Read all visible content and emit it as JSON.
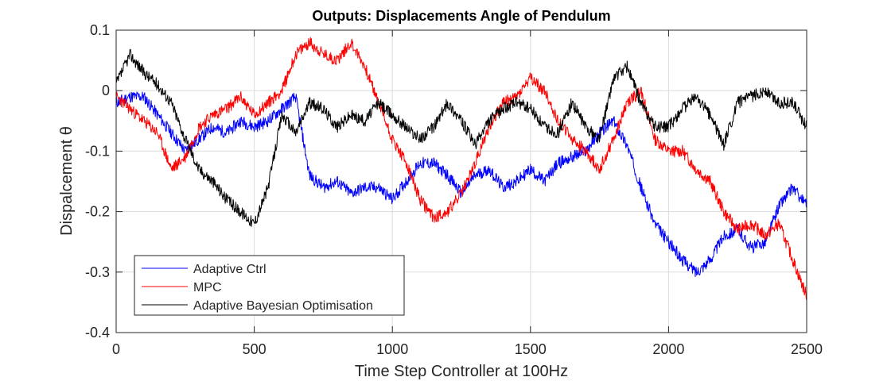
{
  "chart_data": {
    "type": "line",
    "title": "Outputs: Displacements Angle of Pendulum",
    "xlabel": "Time Step Controller at 100Hz",
    "ylabel": "Dispalcement θ",
    "xlim": [
      0,
      2500
    ],
    "ylim": [
      -0.4,
      0.1
    ],
    "x_ticks": [
      0,
      500,
      1000,
      1500,
      2000,
      2500
    ],
    "y_ticks": [
      -0.4,
      -0.3,
      -0.2,
      -0.1,
      0,
      0.1
    ],
    "x_tick_labels": [
      "0",
      "500",
      "1000",
      "1500",
      "2000",
      "2500"
    ],
    "y_tick_labels": [
      "-0.4",
      "-0.3",
      "-0.2",
      "-0.1",
      "0",
      "0.1"
    ],
    "grid": true,
    "legend_position": "bottom-left",
    "x": [
      0,
      50,
      100,
      150,
      200,
      250,
      300,
      350,
      400,
      450,
      500,
      550,
      600,
      650,
      700,
      750,
      800,
      850,
      900,
      950,
      1000,
      1050,
      1100,
      1150,
      1200,
      1250,
      1300,
      1350,
      1400,
      1450,
      1500,
      1550,
      1600,
      1650,
      1700,
      1750,
      1800,
      1850,
      1900,
      1950,
      2000,
      2050,
      2100,
      2150,
      2200,
      2250,
      2300,
      2350,
      2400,
      2450,
      2500
    ],
    "series": [
      {
        "name": "Adaptive Ctrl",
        "color": "#0000ff",
        "values": [
          -0.02,
          -0.01,
          -0.01,
          -0.04,
          -0.07,
          -0.1,
          -0.08,
          -0.06,
          -0.07,
          -0.05,
          -0.06,
          -0.05,
          -0.03,
          -0.01,
          -0.14,
          -0.16,
          -0.15,
          -0.17,
          -0.16,
          -0.16,
          -0.18,
          -0.15,
          -0.12,
          -0.12,
          -0.14,
          -0.17,
          -0.14,
          -0.13,
          -0.16,
          -0.15,
          -0.13,
          -0.15,
          -0.12,
          -0.11,
          -0.1,
          -0.07,
          -0.05,
          -0.09,
          -0.16,
          -0.22,
          -0.25,
          -0.28,
          -0.3,
          -0.28,
          -0.24,
          -0.23,
          -0.26,
          -0.25,
          -0.19,
          -0.16,
          -0.19
        ]
      },
      {
        "name": "MPC",
        "color": "#ff0000",
        "values": [
          -0.01,
          -0.03,
          -0.05,
          -0.07,
          -0.13,
          -0.11,
          -0.06,
          -0.04,
          -0.03,
          -0.01,
          -0.04,
          -0.02,
          0.0,
          0.06,
          0.08,
          0.06,
          0.05,
          0.08,
          0.04,
          -0.02,
          -0.08,
          -0.12,
          -0.18,
          -0.21,
          -0.2,
          -0.17,
          -0.12,
          -0.06,
          -0.02,
          -0.01,
          0.02,
          0.0,
          -0.05,
          -0.08,
          -0.1,
          -0.13,
          -0.08,
          -0.02,
          0.0,
          -0.08,
          -0.1,
          -0.1,
          -0.13,
          -0.15,
          -0.2,
          -0.23,
          -0.22,
          -0.24,
          -0.22,
          -0.28,
          -0.34
        ]
      },
      {
        "name": "Adaptive Bayesian Optimisation",
        "color": "#000000",
        "values": [
          0.01,
          0.06,
          0.03,
          0.01,
          -0.02,
          -0.08,
          -0.13,
          -0.15,
          -0.18,
          -0.2,
          -0.22,
          -0.16,
          -0.04,
          -0.07,
          -0.02,
          -0.03,
          -0.06,
          -0.04,
          -0.05,
          -0.02,
          -0.04,
          -0.06,
          -0.08,
          -0.06,
          -0.02,
          -0.05,
          -0.09,
          -0.05,
          -0.03,
          -0.02,
          -0.03,
          -0.06,
          -0.07,
          -0.02,
          -0.06,
          -0.08,
          0.02,
          0.04,
          -0.02,
          -0.06,
          -0.06,
          -0.03,
          -0.01,
          -0.04,
          -0.09,
          -0.02,
          -0.01,
          0.0,
          -0.02,
          -0.02,
          -0.06
        ]
      }
    ]
  }
}
